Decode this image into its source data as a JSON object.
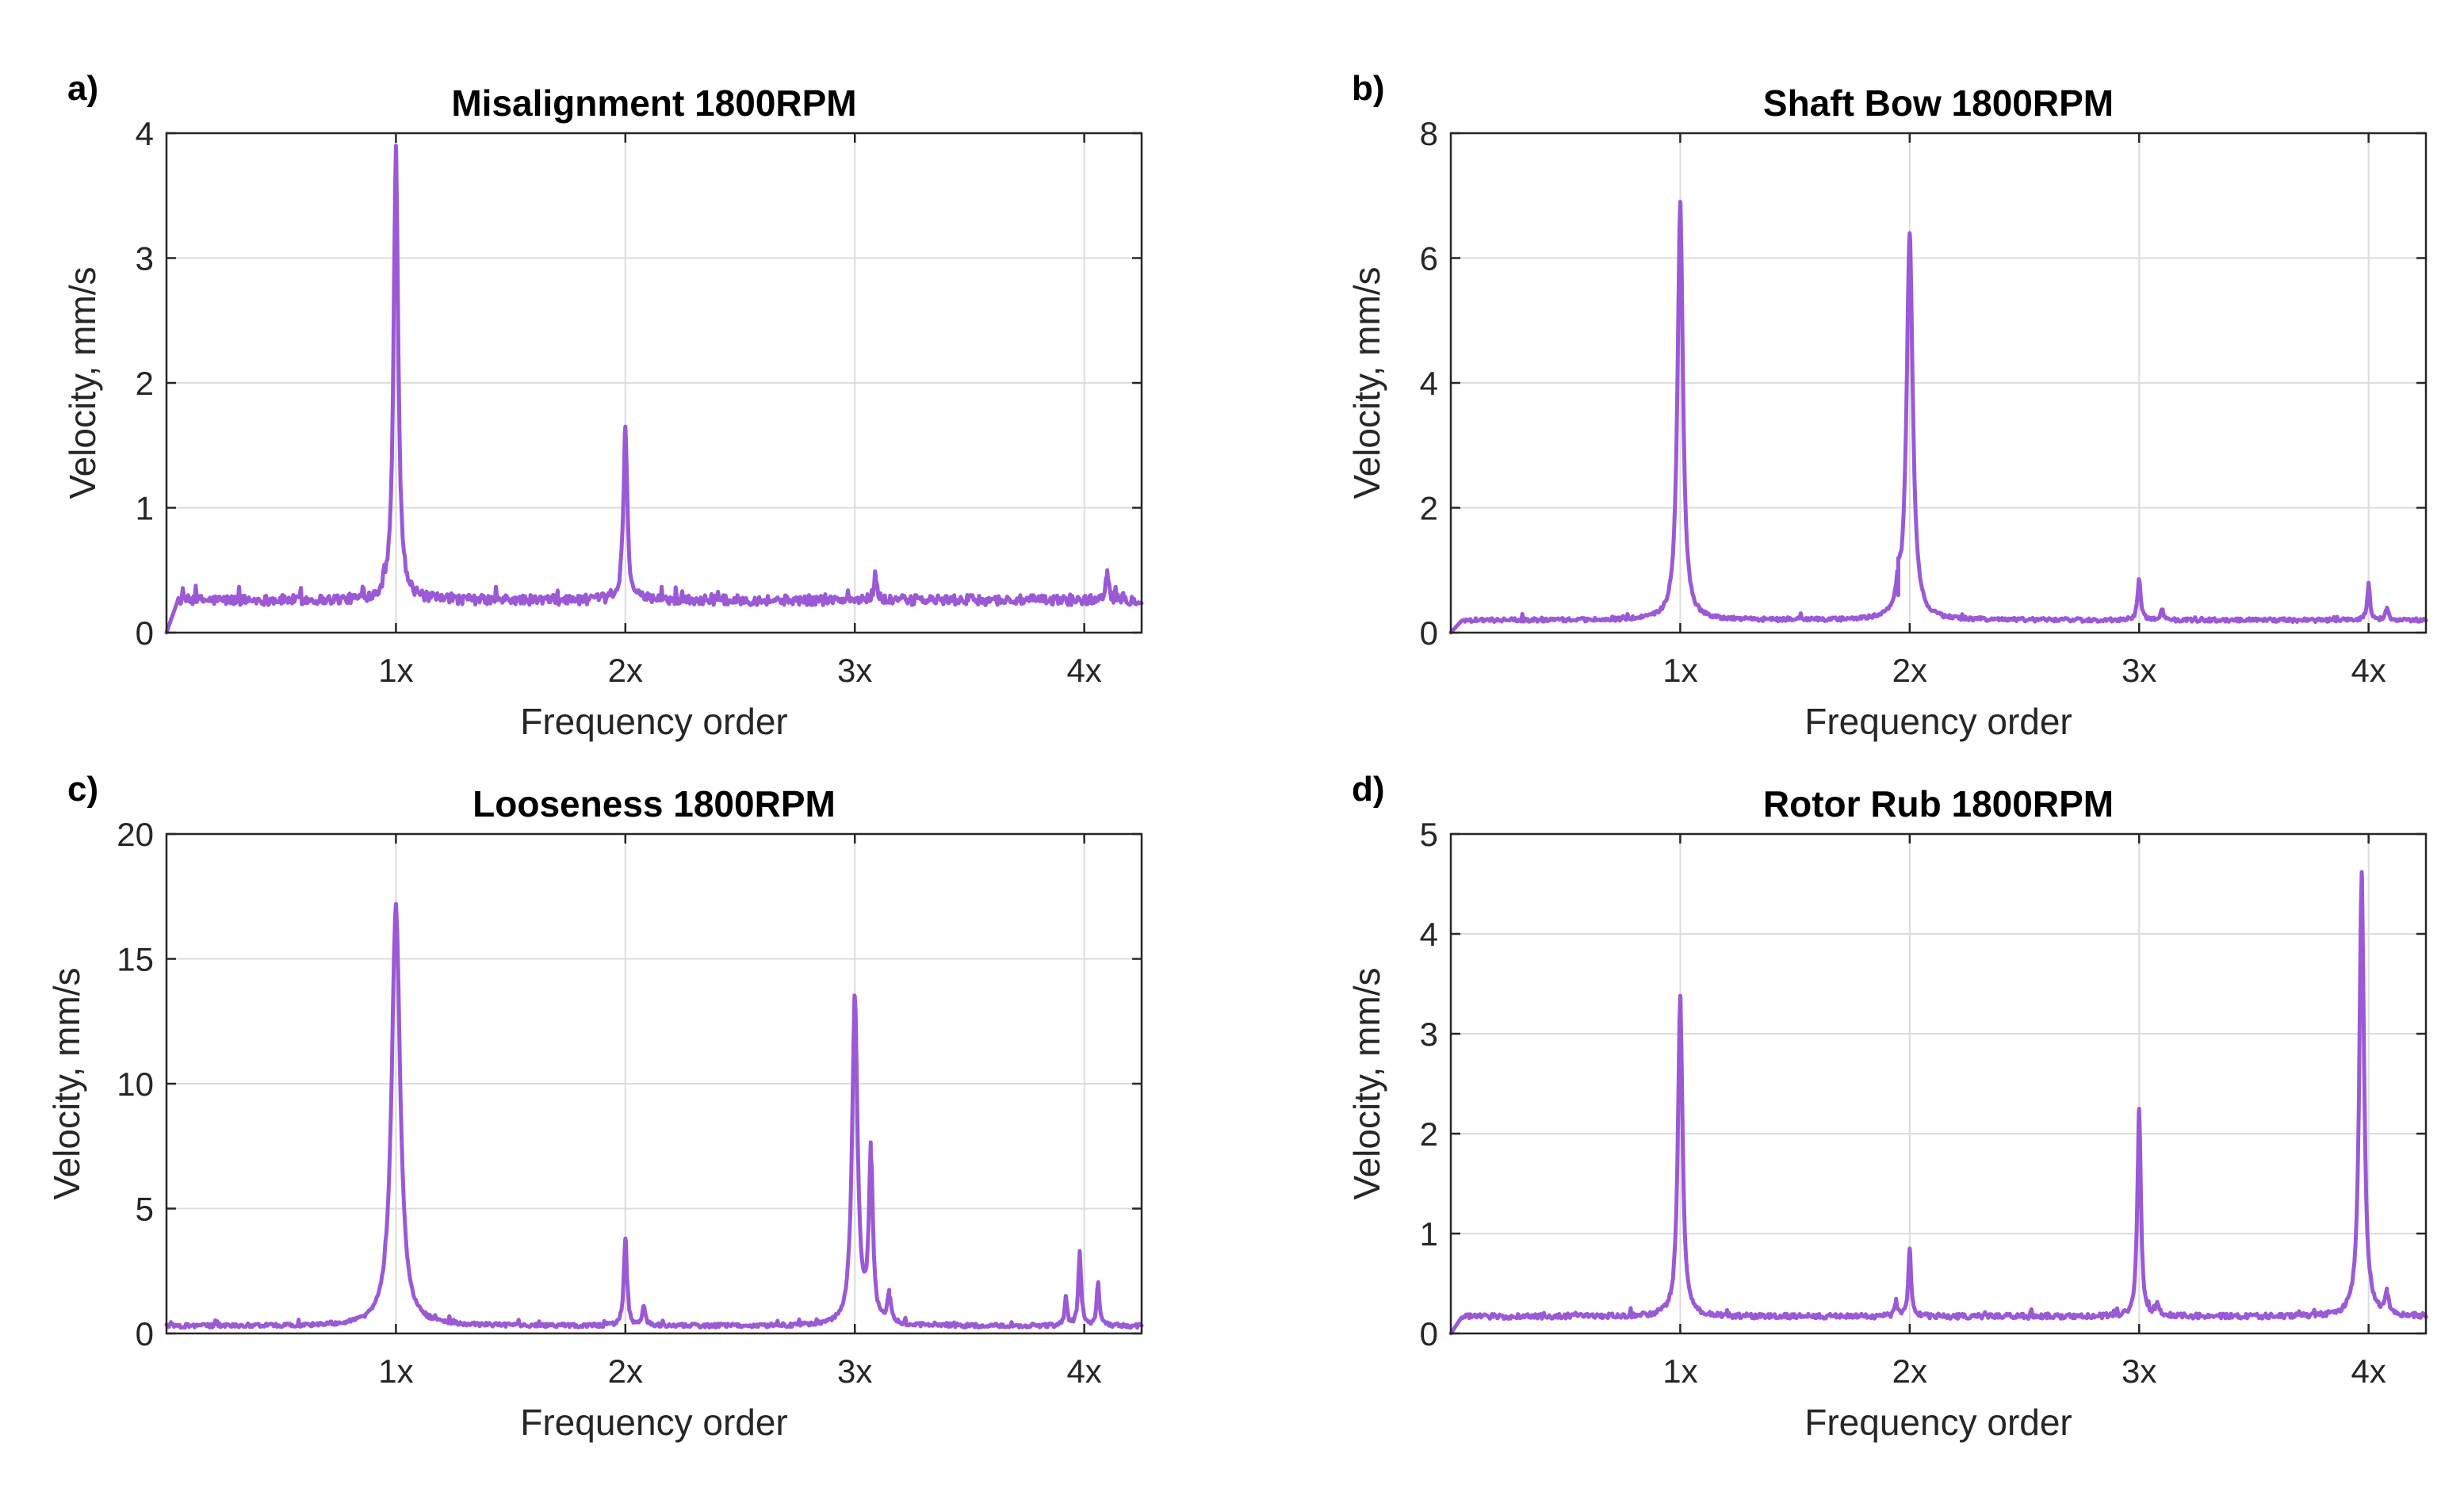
{
  "figure": {
    "line_color": "#9b59d6",
    "grid_color": "#dcdcdc"
  },
  "chart_data": [
    {
      "id": "a",
      "panel_label": "a)",
      "type": "line",
      "title": "Misalignment 1800RPM",
      "xlabel": "Frequency order",
      "ylabel": "Velocity, mm/s",
      "xlim": [
        0,
        4.25
      ],
      "ylim": [
        0,
        4
      ],
      "yticks": [
        0,
        1,
        2,
        3,
        4
      ],
      "ytick_labels": [
        "0",
        "1",
        "2",
        "3",
        "4"
      ],
      "xticks": [
        1,
        2,
        3,
        4
      ],
      "xtick_labels": [
        "1x",
        "2x",
        "3x",
        "4x"
      ],
      "grid": true,
      "baseline": 0.26,
      "noise": 0.04,
      "start": 0.05,
      "peaks": [
        {
          "x": 1.0,
          "y": 3.9,
          "w": 0.012
        },
        {
          "x": 2.0,
          "y": 1.65,
          "w": 0.01
        },
        {
          "x": 3.09,
          "y": 0.47,
          "w": 0.008
        },
        {
          "x": 4.1,
          "y": 0.5,
          "w": 0.008
        }
      ]
    },
    {
      "id": "b",
      "panel_label": "b)",
      "type": "line",
      "title": "Shaft Bow 1800RPM",
      "xlabel": "Frequency order",
      "ylabel": "Velocity, mm/s",
      "xlim": [
        0,
        4.25
      ],
      "ylim": [
        0,
        8
      ],
      "yticks": [
        0,
        2,
        4,
        6,
        8
      ],
      "ytick_labels": [
        "0",
        "2",
        "4",
        "6",
        "8"
      ],
      "xticks": [
        1,
        2,
        3,
        4
      ],
      "xtick_labels": [
        "1x",
        "2x",
        "3x",
        "4x"
      ],
      "grid": true,
      "baseline": 0.2,
      "noise": 0.03,
      "start": 0.05,
      "peaks": [
        {
          "x": 1.0,
          "y": 6.9,
          "w": 0.014
        },
        {
          "x": 2.0,
          "y": 6.4,
          "w": 0.016
        },
        {
          "x": 1.95,
          "y": 0.6,
          "w": 0.008
        },
        {
          "x": 3.0,
          "y": 0.85,
          "w": 0.008
        },
        {
          "x": 3.1,
          "y": 0.35,
          "w": 0.008
        },
        {
          "x": 4.0,
          "y": 0.8,
          "w": 0.007
        },
        {
          "x": 4.08,
          "y": 0.4,
          "w": 0.008
        }
      ]
    },
    {
      "id": "c",
      "panel_label": "c)",
      "type": "line",
      "title": "Looseness 1800RPM",
      "xlabel": "Frequency order",
      "ylabel": "Velocity, mm/s",
      "xlim": [
        0,
        4.25
      ],
      "ylim": [
        0,
        20
      ],
      "yticks": [
        0,
        5,
        10,
        15,
        20
      ],
      "ytick_labels": [
        "0",
        "5",
        "10",
        "15",
        "20"
      ],
      "xticks": [
        1,
        2,
        3,
        4
      ],
      "xtick_labels": [
        "1x",
        "2x",
        "3x",
        "4x"
      ],
      "grid": true,
      "baseline": 0.3,
      "noise": 0.08,
      "start": 0.0,
      "peaks": [
        {
          "x": 1.0,
          "y": 17.2,
          "w": 0.022
        },
        {
          "x": 2.0,
          "y": 3.8,
          "w": 0.008
        },
        {
          "x": 2.08,
          "y": 1.1,
          "w": 0.008
        },
        {
          "x": 3.0,
          "y": 13.5,
          "w": 0.014
        },
        {
          "x": 3.07,
          "y": 7.1,
          "w": 0.01
        },
        {
          "x": 3.15,
          "y": 1.5,
          "w": 0.01
        },
        {
          "x": 3.92,
          "y": 1.5,
          "w": 0.006
        },
        {
          "x": 3.98,
          "y": 3.3,
          "w": 0.007
        },
        {
          "x": 4.06,
          "y": 2.0,
          "w": 0.007
        }
      ]
    },
    {
      "id": "d",
      "panel_label": "d)",
      "type": "line",
      "title": "Rotor Rub 1800RPM",
      "xlabel": "Frequency order",
      "ylabel": "Velocity, mm/s",
      "xlim": [
        0,
        4.25
      ],
      "ylim": [
        0,
        5
      ],
      "yticks": [
        0,
        1,
        2,
        3,
        4,
        5
      ],
      "ytick_labels": [
        "0",
        "1",
        "2",
        "3",
        "4",
        "5"
      ],
      "xticks": [
        1,
        2,
        3,
        4
      ],
      "xtick_labels": [
        "1x",
        "2x",
        "3x",
        "4x"
      ],
      "grid": true,
      "baseline": 0.17,
      "noise": 0.025,
      "start": 0.05,
      "peaks": [
        {
          "x": 1.0,
          "y": 3.38,
          "w": 0.012
        },
        {
          "x": 1.94,
          "y": 0.32,
          "w": 0.007
        },
        {
          "x": 2.0,
          "y": 0.85,
          "w": 0.007
        },
        {
          "x": 3.0,
          "y": 2.25,
          "w": 0.009
        },
        {
          "x": 3.08,
          "y": 0.3,
          "w": 0.007
        },
        {
          "x": 3.97,
          "y": 4.62,
          "w": 0.012
        },
        {
          "x": 4.08,
          "y": 0.4,
          "w": 0.008
        }
      ]
    }
  ]
}
